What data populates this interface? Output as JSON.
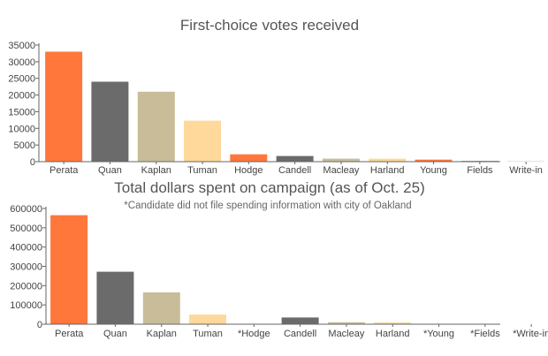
{
  "chart_data": [
    {
      "type": "bar",
      "title": "First-choice votes received",
      "subtitle": "",
      "xlabel": "",
      "ylabel": "",
      "categories": [
        "Perata",
        "Quan",
        "Kaplan",
        "Tuman",
        "Hodge",
        "Candell",
        "Macleay",
        "Harland",
        "Young",
        "Fields",
        "Write-in"
      ],
      "values": [
        33000,
        24000,
        21000,
        12300,
        2200,
        1700,
        900,
        900,
        600,
        200,
        100
      ],
      "colors": [
        "#ff773b",
        "#6b6b6b",
        "#c9bd99",
        "#ffd89c",
        "#ff773b",
        "#6b6b6b",
        "#c9bd99",
        "#ffd89c",
        "#ff773b",
        "#6b6b6b",
        "#c9bd99"
      ],
      "ylim": [
        0,
        35000
      ],
      "yticks": [
        0,
        5000,
        10000,
        15000,
        20000,
        25000,
        30000,
        35000
      ],
      "grid": false,
      "legend": "none"
    },
    {
      "type": "bar",
      "title": "Total dollars spent on campaign (as of Oct. 25)",
      "subtitle": "*Candidate did not file spending information with city of Oakland",
      "xlabel": "",
      "ylabel": "",
      "categories": [
        "Perata",
        "Quan",
        "Kaplan",
        "Tuman",
        "*Hodge",
        "Candell",
        "Macleay",
        "Harland",
        "*Young",
        "*Fields",
        "*Write-in"
      ],
      "values": [
        565000,
        272000,
        165000,
        50000,
        0,
        35000,
        10000,
        9000,
        0,
        0,
        0
      ],
      "colors": [
        "#ff773b",
        "#6b6b6b",
        "#c9bd99",
        "#ffd89c",
        "#ff773b",
        "#6b6b6b",
        "#c9bd99",
        "#ffd89c",
        "#ff773b",
        "#6b6b6b",
        "#c9bd99"
      ],
      "ylim": [
        0,
        600000
      ],
      "yticks": [
        0,
        100000,
        200000,
        300000,
        400000,
        500000,
        600000
      ],
      "grid": false,
      "legend": "none"
    }
  ]
}
